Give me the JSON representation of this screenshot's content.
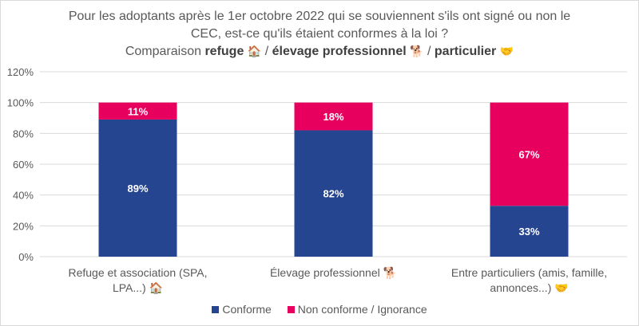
{
  "title": {
    "line1": "Pour les adoptants après le 1er octobre 2022 qui se souviennent s'ils ont signé ou non le",
    "line2": "CEC, est-ce qu'ils étaient conformes à la loi ?",
    "line3_prefix": "Comparaison ",
    "refuge": "refuge",
    "refuge_emoji": "🏠",
    "sep1": " / ",
    "elevage": "élevage professionnel",
    "elevage_emoji": "🐕",
    "sep2": " / ",
    "particulier": "particulier",
    "particulier_emoji": "🤝"
  },
  "colors": {
    "conforme": "#264591",
    "non_conforme": "#E8005F",
    "grid": "#d9d9d9",
    "axis_text": "#595959"
  },
  "chart_data": {
    "type": "bar",
    "stacked": true,
    "categories": [
      "Refuge et association (SPA, LPA...) 🏠",
      "Élevage professionnel 🐕",
      "Entre particuliers (amis, famille, annonces...) 🤝"
    ],
    "series": [
      {
        "name": "Conforme",
        "values": [
          89,
          82,
          33
        ],
        "labels": [
          "89%",
          "82%",
          "33%"
        ]
      },
      {
        "name": "Non conforme / Ignorance",
        "values": [
          11,
          18,
          67
        ],
        "labels": [
          "11%",
          "18%",
          "67%"
        ]
      }
    ],
    "ylim": [
      0,
      120
    ],
    "yticks": [
      "0%",
      "20%",
      "40%",
      "60%",
      "80%",
      "100%",
      "120%"
    ],
    "grid": true,
    "legend_position": "bottom"
  }
}
